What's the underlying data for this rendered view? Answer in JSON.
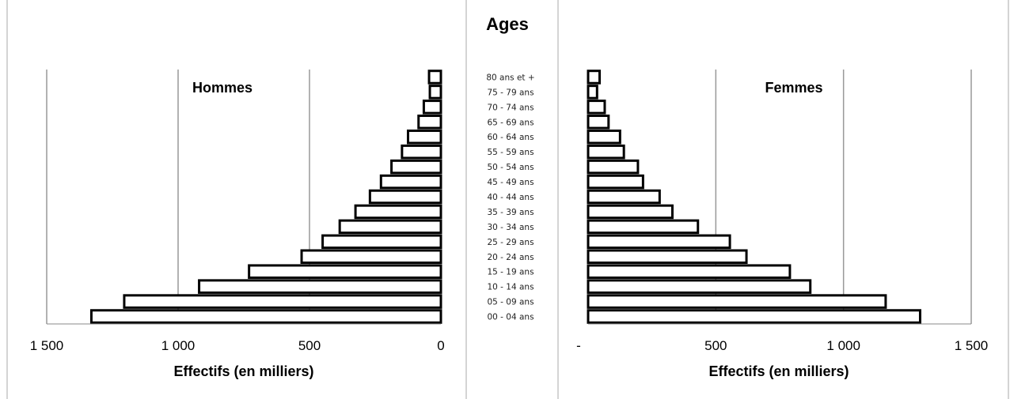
{
  "chart_data": {
    "type": "bar",
    "title": "Ages",
    "categories": [
      "00 - 04 ans",
      "05 - 09 ans",
      "10 - 14 ans",
      "15 - 19 ans",
      "20 - 24 ans",
      "25 - 29 ans",
      "30 - 34 ans",
      "35 - 39 ans",
      "40 - 44 ans",
      "45 - 49 ans",
      "50 - 54 ans",
      "55 - 59 ans",
      "60 - 64 ans",
      "65 - 69 ans",
      "70 - 74 ans",
      "75 - 79 ans",
      "80 ans et +"
    ],
    "series": [
      {
        "name": "Hommes",
        "values": [
          1330,
          1205,
          920,
          730,
          530,
          450,
          385,
          325,
          270,
          228,
          188,
          148,
          125,
          85,
          65,
          42,
          45
        ]
      },
      {
        "name": "Femmes",
        "values": [
          1300,
          1165,
          870,
          790,
          620,
          555,
          430,
          330,
          280,
          215,
          195,
          140,
          125,
          80,
          65,
          35,
          45
        ]
      }
    ],
    "left_panel": {
      "xlabel": "Effectifs (en milliers)",
      "xlim": [
        1500,
        0
      ],
      "ticks": [
        "1 500",
        "1 000",
        "500",
        "0"
      ],
      "grid": true
    },
    "right_panel": {
      "xlabel": "Effectifs (en milliers)",
      "xlim": [
        0,
        1500
      ],
      "ticks": [
        "-",
        "500",
        "1 000",
        "1 500"
      ],
      "grid": true
    },
    "colors": {
      "bar_fill": "#ffffff",
      "bar_stroke": "#000000",
      "grid": "#999999",
      "frame": "#aaaaaa"
    }
  }
}
